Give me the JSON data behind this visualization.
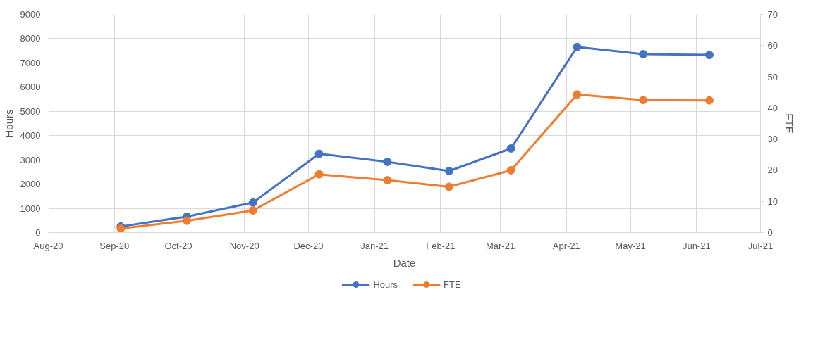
{
  "chart_data": {
    "type": "line",
    "xlabel": "Date",
    "ylabel": "Hours",
    "y2label": "FTE",
    "x": [
      "2020-09-04",
      "2020-10-05",
      "2020-11-05",
      "2020-12-06",
      "2021-01-07",
      "2021-02-05",
      "2021-03-06",
      "2021-04-06",
      "2021-05-07",
      "2021-06-07"
    ],
    "series": [
      {
        "name": "Hours",
        "color": "#4472c4",
        "values": [
          250,
          660,
          1240,
          3250,
          2920,
          2540,
          3470,
          7660,
          7360,
          7330
        ]
      },
      {
        "name": "FTE",
        "color": "#ed7d31",
        "axis": "y2",
        "values": [
          1.3,
          3.8,
          7.1,
          18.7,
          16.8,
          14.7,
          20.0,
          44.3,
          42.5,
          42.4
        ]
      }
    ],
    "xlim": [
      "2020-08",
      "2021-07"
    ],
    "xticks": [
      {
        "value": "2020-08",
        "label": "Aug-20"
      },
      {
        "value": "2020-09",
        "label": "Sep-20"
      },
      {
        "value": "2020-10",
        "label": "Oct-20"
      },
      {
        "value": "2020-11",
        "label": "Nov-20"
      },
      {
        "value": "2020-12",
        "label": "Dec-20"
      },
      {
        "value": "2021-01",
        "label": "Jan-21"
      },
      {
        "value": "2021-02",
        "label": "Feb-21"
      },
      {
        "value": "2021-03",
        "label": "Mar-21"
      },
      {
        "value": "2021-04",
        "label": "Apr-21"
      },
      {
        "value": "2021-05",
        "label": "May-21"
      },
      {
        "value": "2021-06",
        "label": "Jun-21"
      },
      {
        "value": "2021-07",
        "label": "Jul-21"
      }
    ],
    "ylim": [
      0,
      9000
    ],
    "yticks": [
      0,
      1000,
      2000,
      3000,
      4000,
      5000,
      6000,
      7000,
      8000,
      9000
    ],
    "y2lim": [
      0,
      70
    ],
    "y2ticks": [
      0,
      10,
      20,
      30,
      40,
      50,
      60,
      70
    ],
    "grid": true,
    "legend": "bottom",
    "marker": "circle",
    "line_style": "solid"
  }
}
